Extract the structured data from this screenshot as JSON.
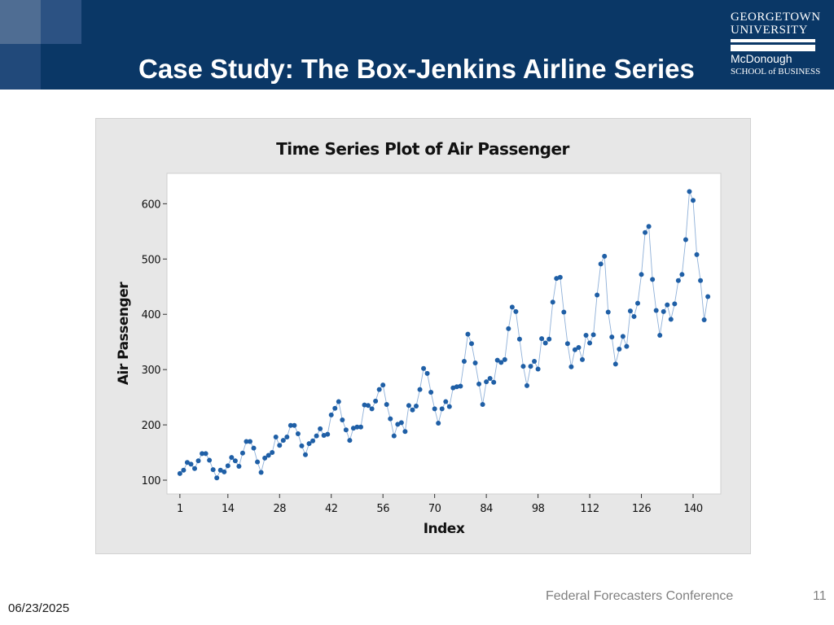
{
  "slide": {
    "title": "Case Study: The Box-Jenkins Airline Series",
    "footer": "Federal Forecasters Conference",
    "page_number": "11",
    "date": "06/23/2025"
  },
  "logo": {
    "line1": "GEORGETOWN",
    "line2": "UNIVERSITY",
    "line3": "McDonough",
    "line4": "SCHOOL of BUSINESS"
  },
  "colors": {
    "header_bg": "#0a3766",
    "point": "#1f5fa6",
    "line": "#8fb0d8",
    "panel_bg": "#e7e7e7"
  },
  "chart_data": {
    "type": "line",
    "title": "Time Series Plot of Air Passenger",
    "xlabel": "Index",
    "ylabel": "Air Passenger",
    "x_ticks": [
      1,
      14,
      28,
      42,
      56,
      70,
      84,
      98,
      112,
      126,
      140
    ],
    "y_ticks": [
      100,
      200,
      300,
      400,
      500,
      600
    ],
    "xlim": [
      -2.5,
      147.5
    ],
    "ylim": [
      75,
      655
    ],
    "series": [
      {
        "markers": true,
        "values": [
          112,
          118,
          132,
          129,
          121,
          135,
          148,
          148,
          136,
          119,
          104,
          118,
          115,
          126,
          141,
          135,
          125,
          149,
          170,
          170,
          158,
          133,
          114,
          140,
          145,
          150,
          178,
          163,
          172,
          178,
          199,
          199,
          184,
          162,
          146,
          166,
          171,
          180,
          193,
          181,
          183,
          218,
          230,
          242,
          209,
          191,
          172,
          194,
          196,
          196,
          236,
          235,
          229,
          243,
          264,
          272,
          237,
          211,
          180,
          201,
          204,
          188,
          235,
          227,
          234,
          264,
          302,
          293,
          259,
          229,
          203,
          229,
          242,
          233,
          267,
          269,
          270,
          315,
          364,
          347,
          312,
          274,
          237,
          278,
          284,
          277,
          317,
          313,
          318,
          374,
          413,
          405,
          355,
          306,
          271,
          306,
          315,
          301,
          356,
          348,
          355,
          422,
          465,
          467,
          404,
          347,
          305,
          336,
          340,
          318,
          362,
          348,
          363,
          435,
          491,
          505,
          404,
          359,
          310,
          337,
          360,
          342,
          406,
          396,
          420,
          472,
          548,
          559,
          463,
          407,
          362,
          405,
          417,
          391,
          419,
          461,
          472,
          535,
          622,
          606,
          508,
          461,
          390,
          432
        ]
      }
    ]
  }
}
